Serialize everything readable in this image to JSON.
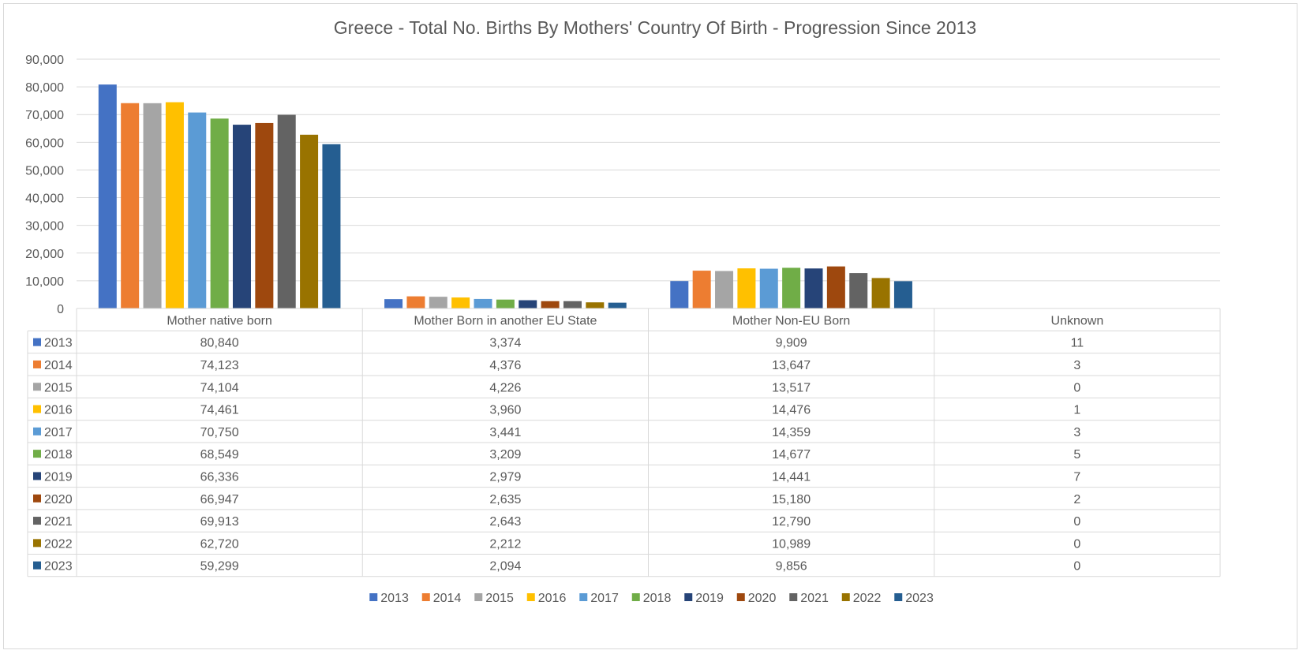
{
  "chart_data": {
    "type": "bar",
    "title": "Greece - Total No. Births By Mothers' Country Of Birth - Progression Since 2013",
    "xlabel": "",
    "ylabel": "",
    "ylim": [
      0,
      90000
    ],
    "yticks": [
      "0",
      "10,000",
      "20,000",
      "30,000",
      "40,000",
      "50,000",
      "60,000",
      "70,000",
      "80,000",
      "90,000"
    ],
    "grid": true,
    "legend_position": "bottom",
    "data_table": true,
    "categories": [
      "Mother native born",
      "Mother Born in another EU State",
      "Mother Non-EU Born",
      "Unknown"
    ],
    "series": [
      {
        "name": "2013",
        "color": "#4472C4",
        "values": [
          80840,
          3374,
          9909,
          11
        ],
        "labels": [
          "80,840",
          "3,374",
          "9,909",
          "11"
        ]
      },
      {
        "name": "2014",
        "color": "#ED7D31",
        "values": [
          74123,
          4376,
          13647,
          3
        ],
        "labels": [
          "74,123",
          "4,376",
          "13,647",
          "3"
        ]
      },
      {
        "name": "2015",
        "color": "#A5A5A5",
        "values": [
          74104,
          4226,
          13517,
          0
        ],
        "labels": [
          "74,104",
          "4,226",
          "13,517",
          "0"
        ]
      },
      {
        "name": "2016",
        "color": "#FFC000",
        "values": [
          74461,
          3960,
          14476,
          1
        ],
        "labels": [
          "74,461",
          "3,960",
          "14,476",
          "1"
        ]
      },
      {
        "name": "2017",
        "color": "#5B9BD5",
        "values": [
          70750,
          3441,
          14359,
          3
        ],
        "labels": [
          "70,750",
          "3,441",
          "14,359",
          "3"
        ]
      },
      {
        "name": "2018",
        "color": "#70AD47",
        "values": [
          68549,
          3209,
          14677,
          5
        ],
        "labels": [
          "68,549",
          "3,209",
          "14,677",
          "5"
        ]
      },
      {
        "name": "2019",
        "color": "#264478",
        "values": [
          66336,
          2979,
          14441,
          7
        ],
        "labels": [
          "66,336",
          "2,979",
          "14,441",
          "7"
        ]
      },
      {
        "name": "2020",
        "color": "#9E480E",
        "values": [
          66947,
          2635,
          15180,
          2
        ],
        "labels": [
          "66,947",
          "2,635",
          "15,180",
          "2"
        ]
      },
      {
        "name": "2021",
        "color": "#636363",
        "values": [
          69913,
          2643,
          12790,
          0
        ],
        "labels": [
          "69,913",
          "2,643",
          "12,790",
          "0"
        ]
      },
      {
        "name": "2022",
        "color": "#997300",
        "values": [
          62720,
          2212,
          10989,
          0
        ],
        "labels": [
          "62,720",
          "2,212",
          "10,989",
          "0"
        ]
      },
      {
        "name": "2023",
        "color": "#255E91",
        "values": [
          59299,
          2094,
          9856,
          0
        ],
        "labels": [
          "59,299",
          "2,094",
          "9,856",
          "0"
        ]
      }
    ]
  }
}
